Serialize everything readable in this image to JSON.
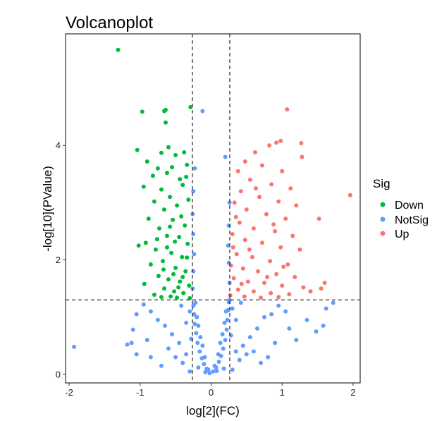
{
  "chart_data": {
    "type": "scatter",
    "title": "Volcanoplot",
    "xlabel": "log[2](FC)",
    "ylabel": "-log[10](PValue)",
    "xlim": [
      -2.05,
      2.1
    ],
    "ylim": [
      -0.15,
      5.95
    ],
    "x_ticks": [
      -2,
      -1,
      0,
      1,
      2
    ],
    "y_ticks": [
      0,
      2,
      4
    ],
    "x_tick_labels": [
      "-2",
      "-1",
      "0",
      "1",
      "2"
    ],
    "y_tick_labels": [
      "0",
      "2",
      "4"
    ],
    "thresholds": {
      "logFC": [
        -0.263,
        0.263
      ],
      "neg_log10_p": 1.301
    },
    "grid": false,
    "legend": {
      "title": "Sig",
      "placement": "right",
      "entries": [
        {
          "name": "Down",
          "color": "#00BA38"
        },
        {
          "name": "NotSig",
          "color": "#619CFF"
        },
        {
          "name": "Up",
          "color": "#F8766D"
        }
      ]
    },
    "series": [
      {
        "name": "Down",
        "color": "#00BA38",
        "points": [
          [
            -1.31,
            5.67
          ],
          [
            -0.64,
            4.62
          ],
          [
            -0.97,
            4.59
          ],
          [
            -0.66,
            4.6
          ],
          [
            -0.29,
            4.67
          ],
          [
            -0.64,
            4.4
          ],
          [
            -1.04,
            3.92
          ],
          [
            -0.6,
            3.97
          ],
          [
            -0.7,
            3.87
          ],
          [
            -0.38,
            3.88
          ],
          [
            -0.9,
            3.72
          ],
          [
            -0.5,
            3.83
          ],
          [
            -0.55,
            3.62
          ],
          [
            -0.75,
            3.6
          ],
          [
            -0.34,
            3.66
          ],
          [
            -0.82,
            3.47
          ],
          [
            -0.62,
            3.52
          ],
          [
            -0.44,
            3.41
          ],
          [
            -0.95,
            3.28
          ],
          [
            -0.7,
            3.23
          ],
          [
            -0.4,
            3.31
          ],
          [
            -0.58,
            3.1
          ],
          [
            -0.8,
            3.02
          ],
          [
            -0.32,
            3.05
          ],
          [
            -0.66,
            2.88
          ],
          [
            -0.48,
            2.95
          ],
          [
            -0.88,
            2.72
          ],
          [
            -0.54,
            2.7
          ],
          [
            -0.37,
            2.6
          ],
          [
            -0.73,
            2.55
          ],
          [
            -0.62,
            2.42
          ],
          [
            -0.45,
            2.4
          ],
          [
            -0.92,
            2.3
          ],
          [
            -0.33,
            2.28
          ],
          [
            -0.78,
            2.18
          ],
          [
            -0.56,
            2.12
          ],
          [
            -0.41,
            2.05
          ],
          [
            -0.68,
            1.98
          ],
          [
            -0.85,
            1.92
          ],
          [
            -0.5,
            1.86
          ],
          [
            -0.36,
            1.8
          ],
          [
            -0.74,
            1.72
          ],
          [
            -0.6,
            1.66
          ],
          [
            -0.44,
            1.62
          ],
          [
            -0.94,
            1.58
          ],
          [
            -0.31,
            1.55
          ],
          [
            -0.66,
            1.5
          ],
          [
            -0.52,
            1.45
          ],
          [
            -0.39,
            1.42
          ],
          [
            -0.8,
            1.39
          ],
          [
            -0.57,
            1.36
          ],
          [
            -0.3,
            1.33
          ],
          [
            -0.48,
            1.34
          ],
          [
            -0.7,
            1.35
          ],
          [
            -0.62,
            2.22
          ],
          [
            -0.42,
            2.76
          ],
          [
            -0.35,
            3.45
          ],
          [
            -0.53,
            1.75
          ],
          [
            -0.76,
            2.36
          ],
          [
            -0.46,
            1.52
          ],
          [
            -0.34,
            2.04
          ],
          [
            -0.58,
            2.58
          ],
          [
            -1.02,
            2.25
          ],
          [
            -0.67,
            1.83
          ],
          [
            -0.4,
            1.7
          ],
          [
            -0.51,
            2.32
          ]
        ]
      },
      {
        "name": "NotSig",
        "color": "#619CFF",
        "points": [
          [
            -0.02,
            0.02
          ],
          [
            0.03,
            0.05
          ],
          [
            -0.06,
            0.1
          ],
          [
            0.07,
            0.12
          ],
          [
            -0.1,
            0.18
          ],
          [
            0.11,
            0.22
          ],
          [
            -0.13,
            0.28
          ],
          [
            0.14,
            0.32
          ],
          [
            -0.04,
            0.08
          ],
          [
            0.05,
            0.15
          ],
          [
            -0.16,
            0.4
          ],
          [
            0.17,
            0.45
          ],
          [
            -0.19,
            0.55
          ],
          [
            0.2,
            0.6
          ],
          [
            -0.21,
            0.72
          ],
          [
            0.22,
            0.78
          ],
          [
            -0.23,
            0.88
          ],
          [
            0.23,
            0.95
          ],
          [
            -0.24,
            1.05
          ],
          [
            0.24,
            1.12
          ],
          [
            -0.25,
            1.2
          ],
          [
            0.25,
            1.26
          ],
          [
            -0.09,
            0.3
          ],
          [
            0.1,
            0.35
          ],
          [
            -0.12,
            0.5
          ],
          [
            0.13,
            0.55
          ],
          [
            -0.15,
            0.65
          ],
          [
            0.16,
            0.7
          ],
          [
            -0.18,
            0.85
          ],
          [
            0.19,
            0.9
          ],
          [
            -0.2,
            1.0
          ],
          [
            0.21,
            1.1
          ],
          [
            -0.22,
            1.25
          ],
          [
            0.26,
            1.3
          ],
          [
            -0.26,
            1.5
          ],
          [
            0.26,
            1.6
          ],
          [
            -0.25,
            1.8
          ],
          [
            0.25,
            1.95
          ],
          [
            -0.24,
            2.1
          ],
          [
            0.24,
            2.25
          ],
          [
            -0.25,
            2.45
          ],
          [
            0.25,
            2.6
          ],
          [
            -0.26,
            2.8
          ],
          [
            0.26,
            3.0
          ],
          [
            -0.25,
            3.2
          ],
          [
            0.2,
            3.8
          ],
          [
            -0.23,
            3.6
          ],
          [
            -0.12,
            4.6
          ],
          [
            -0.35,
            0.35
          ],
          [
            0.35,
            0.4
          ],
          [
            -0.45,
            0.55
          ],
          [
            0.45,
            0.5
          ],
          [
            -0.55,
            0.7
          ],
          [
            0.55,
            0.65
          ],
          [
            -0.65,
            0.85
          ],
          [
            0.65,
            0.8
          ],
          [
            -0.75,
            0.95
          ],
          [
            0.75,
            1.0
          ],
          [
            -0.85,
            1.1
          ],
          [
            0.85,
            1.05
          ],
          [
            -0.4,
            0.2
          ],
          [
            0.4,
            0.25
          ],
          [
            -0.5,
            0.3
          ],
          [
            0.5,
            0.35
          ],
          [
            -0.6,
            0.45
          ],
          [
            0.6,
            0.4
          ],
          [
            -0.3,
            1.1
          ],
          [
            0.3,
            1.15
          ],
          [
            -0.35,
            0.9
          ],
          [
            0.35,
            0.95
          ],
          [
            -0.42,
            1.2
          ],
          [
            0.42,
            1.25
          ],
          [
            -0.95,
            1.22
          ],
          [
            0.95,
            1.2
          ],
          [
            -1.05,
            1.05
          ],
          [
            1.05,
            1.1
          ],
          [
            -0.9,
            0.6
          ],
          [
            0.9,
            0.55
          ],
          [
            -1.1,
            0.78
          ],
          [
            1.1,
            0.8
          ],
          [
            -1.18,
            0.52
          ],
          [
            1.2,
            0.6
          ],
          [
            -1.05,
            0.35
          ],
          [
            1.35,
            0.95
          ],
          [
            -1.12,
            0.55
          ],
          [
            1.48,
            0.75
          ],
          [
            -1.93,
            0.48
          ],
          [
            1.72,
            1.25
          ],
          [
            1.58,
            0.85
          ],
          [
            1.62,
            1.15
          ],
          [
            -0.85,
            0.3
          ],
          [
            0.8,
            0.3
          ],
          [
            -0.7,
            0.15
          ],
          [
            0.7,
            0.2
          ],
          [
            -0.3,
            0.05
          ],
          [
            0.3,
            0.08
          ],
          [
            -0.18,
            0.12
          ],
          [
            0.18,
            0.1
          ],
          [
            -0.08,
            0.04
          ],
          [
            0.08,
            0.06
          ],
          [
            -0.28,
            0.62
          ],
          [
            0.28,
            0.68
          ]
        ]
      },
      {
        "name": "Up",
        "color": "#F8766D",
        "points": [
          [
            1.07,
            4.63
          ],
          [
            1.96,
            3.13
          ],
          [
            0.98,
            4.08
          ],
          [
            0.82,
            4.0
          ],
          [
            0.92,
            4.05
          ],
          [
            1.27,
            4.04
          ],
          [
            1.28,
            3.8
          ],
          [
            0.62,
            3.88
          ],
          [
            0.48,
            3.72
          ],
          [
            0.72,
            3.65
          ],
          [
            1.0,
            3.55
          ],
          [
            0.38,
            3.55
          ],
          [
            0.55,
            3.4
          ],
          [
            0.85,
            3.32
          ],
          [
            1.12,
            3.25
          ],
          [
            0.42,
            3.2
          ],
          [
            0.68,
            3.1
          ],
          [
            0.95,
            3.02
          ],
          [
            1.2,
            2.95
          ],
          [
            0.33,
            3.0
          ],
          [
            0.5,
            2.88
          ],
          [
            0.78,
            2.8
          ],
          [
            1.05,
            2.72
          ],
          [
            1.52,
            2.72
          ],
          [
            0.4,
            2.65
          ],
          [
            0.6,
            2.55
          ],
          [
            0.9,
            2.5
          ],
          [
            1.15,
            2.42
          ],
          [
            0.3,
            2.45
          ],
          [
            0.48,
            2.35
          ],
          [
            0.72,
            2.3
          ],
          [
            0.98,
            2.22
          ],
          [
            1.25,
            2.18
          ],
          [
            0.36,
            2.1
          ],
          [
            0.58,
            2.05
          ],
          [
            0.83,
            1.98
          ],
          [
            1.08,
            1.92
          ],
          [
            0.28,
            1.9
          ],
          [
            0.45,
            1.85
          ],
          [
            0.66,
            1.8
          ],
          [
            0.92,
            1.75
          ],
          [
            1.18,
            1.7
          ],
          [
            0.32,
            1.68
          ],
          [
            0.52,
            1.62
          ],
          [
            0.75,
            1.6
          ],
          [
            1.0,
            1.55
          ],
          [
            1.3,
            1.52
          ],
          [
            0.38,
            1.48
          ],
          [
            0.6,
            1.45
          ],
          [
            0.84,
            1.42
          ],
          [
            1.1,
            1.4
          ],
          [
            0.27,
            1.38
          ],
          [
            0.47,
            1.36
          ],
          [
            0.7,
            1.34
          ],
          [
            0.95,
            1.35
          ],
          [
            1.4,
            1.45
          ],
          [
            1.6,
            1.6
          ],
          [
            1.55,
            1.5
          ],
          [
            0.35,
            2.75
          ],
          [
            0.63,
            3.25
          ],
          [
            0.88,
            2.62
          ],
          [
            0.43,
            1.58
          ],
          [
            0.54,
            2.18
          ],
          [
            0.79,
            1.7
          ],
          [
            1.02,
            1.88
          ],
          [
            0.31,
            2.22
          ]
        ]
      }
    ]
  }
}
